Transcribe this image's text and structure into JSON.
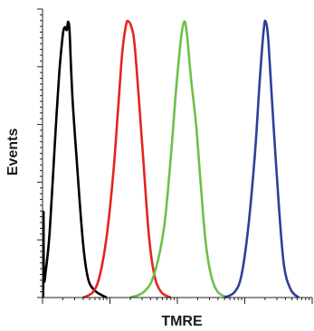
{
  "chart_data": {
    "type": "line",
    "title": "",
    "xlabel": "TMRE",
    "ylabel": "Events",
    "x_scale": "log",
    "xlim": [
      0,
      4
    ],
    "ylim": [
      0,
      1
    ],
    "grid": false,
    "legend": "none",
    "series": [
      {
        "color": "#000000",
        "points": [
          [
            0.01,
            0.0
          ],
          [
            0.015,
            0.31
          ],
          [
            0.02,
            0.07
          ],
          [
            0.05,
            0.1
          ],
          [
            0.1,
            0.22
          ],
          [
            0.15,
            0.42
          ],
          [
            0.2,
            0.63
          ],
          [
            0.25,
            0.82
          ],
          [
            0.3,
            0.95
          ],
          [
            0.33,
            0.98
          ],
          [
            0.36,
            0.97
          ],
          [
            0.38,
            1.0
          ],
          [
            0.4,
            0.97
          ],
          [
            0.42,
            0.85
          ],
          [
            0.45,
            0.7
          ],
          [
            0.5,
            0.52
          ],
          [
            0.55,
            0.35
          ],
          [
            0.6,
            0.2
          ],
          [
            0.65,
            0.1
          ],
          [
            0.7,
            0.05
          ],
          [
            0.8,
            0.02
          ],
          [
            0.95,
            0.0
          ]
        ]
      },
      {
        "color": "#e52320",
        "points": [
          [
            0.6,
            0.0
          ],
          [
            0.75,
            0.02
          ],
          [
            0.85,
            0.08
          ],
          [
            0.95,
            0.22
          ],
          [
            1.05,
            0.45
          ],
          [
            1.12,
            0.68
          ],
          [
            1.18,
            0.88
          ],
          [
            1.24,
            0.99
          ],
          [
            1.28,
            1.0
          ],
          [
            1.32,
            0.98
          ],
          [
            1.36,
            0.93
          ],
          [
            1.42,
            0.75
          ],
          [
            1.5,
            0.48
          ],
          [
            1.58,
            0.22
          ],
          [
            1.66,
            0.08
          ],
          [
            1.76,
            0.02
          ],
          [
            1.9,
            0.0
          ]
        ]
      },
      {
        "color": "#6cc04a",
        "points": [
          [
            1.3,
            0.0
          ],
          [
            1.5,
            0.02
          ],
          [
            1.65,
            0.08
          ],
          [
            1.8,
            0.25
          ],
          [
            1.9,
            0.5
          ],
          [
            1.98,
            0.75
          ],
          [
            2.05,
            0.93
          ],
          [
            2.1,
            1.0
          ],
          [
            2.14,
            0.96
          ],
          [
            2.2,
            0.8
          ],
          [
            2.28,
            0.62
          ],
          [
            2.35,
            0.4
          ],
          [
            2.42,
            0.2
          ],
          [
            2.5,
            0.08
          ],
          [
            2.6,
            0.02
          ],
          [
            2.75,
            0.0
          ]
        ]
      },
      {
        "color": "#2e3f99",
        "points": [
          [
            2.7,
            0.0
          ],
          [
            2.85,
            0.02
          ],
          [
            2.95,
            0.08
          ],
          [
            3.05,
            0.25
          ],
          [
            3.15,
            0.52
          ],
          [
            3.22,
            0.78
          ],
          [
            3.28,
            0.97
          ],
          [
            3.31,
            1.0
          ],
          [
            3.35,
            0.93
          ],
          [
            3.42,
            0.65
          ],
          [
            3.5,
            0.35
          ],
          [
            3.58,
            0.12
          ],
          [
            3.68,
            0.03
          ],
          [
            3.8,
            0.0
          ]
        ]
      }
    ]
  }
}
